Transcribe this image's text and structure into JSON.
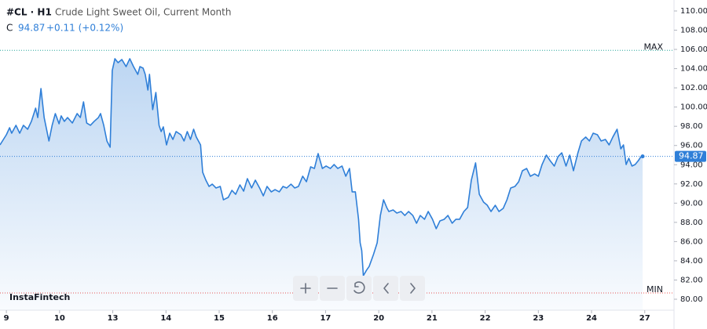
{
  "chart_data": {
    "type": "line",
    "symbol": "#CL · H1",
    "title": "Crude Light Sweet Oil, Current Month",
    "close_label": "C",
    "last_price": 94.87,
    "change": "+0.11 (+0.12%)",
    "watermark": "InstaFintech",
    "color": "#2f7fd8",
    "max": {
      "value": 105.9,
      "label": "MAX",
      "color": "#26a69a"
    },
    "min": {
      "value": 80.65,
      "label": "MIN",
      "color": "#ef5350"
    },
    "xlim": [
      -0.12,
      12.55
    ],
    "xticks": [
      {
        "value": 0,
        "label": "9"
      },
      {
        "value": 1,
        "label": "10"
      },
      {
        "value": 2,
        "label": "13"
      },
      {
        "value": 3,
        "label": "14"
      },
      {
        "value": 4,
        "label": "15"
      },
      {
        "value": 5,
        "label": "16"
      },
      {
        "value": 6,
        "label": "17"
      },
      {
        "value": 7,
        "label": "20"
      },
      {
        "value": 8,
        "label": "21"
      },
      {
        "value": 9,
        "label": "22"
      },
      {
        "value": 10,
        "label": "23"
      },
      {
        "value": 11,
        "label": "24"
      },
      {
        "value": 12,
        "label": "27"
      }
    ],
    "ylim": [
      80,
      110
    ],
    "yticks": [
      {
        "value": 80,
        "label": "80.00"
      },
      {
        "value": 82,
        "label": "82.00"
      },
      {
        "value": 84,
        "label": "84.00"
      },
      {
        "value": 86,
        "label": "86.00"
      },
      {
        "value": 88,
        "label": "88.00"
      },
      {
        "value": 90,
        "label": "90.00"
      },
      {
        "value": 92,
        "label": "92.00"
      },
      {
        "value": 94,
        "label": "94.00"
      },
      {
        "value": 96,
        "label": "96.00"
      },
      {
        "value": 98,
        "label": "98.00"
      },
      {
        "value": 100,
        "label": "100.00"
      },
      {
        "value": 102,
        "label": "102.00"
      },
      {
        "value": 104,
        "label": "104.00"
      },
      {
        "value": 106,
        "label": "106.00"
      },
      {
        "value": 108,
        "label": "108.00"
      },
      {
        "value": 110,
        "label": "110.00"
      }
    ],
    "grid": false,
    "x": [
      -0.12,
      0,
      0.06,
      0.1,
      0.18,
      0.25,
      0.32,
      0.4,
      0.47,
      0.55,
      0.59,
      0.65,
      0.71,
      0.8,
      0.86,
      0.92,
      0.99,
      1.03,
      1.09,
      1.15,
      1.24,
      1.33,
      1.39,
      1.45,
      1.51,
      1.58,
      1.65,
      1.73,
      1.77,
      1.83,
      1.89,
      1.95,
      1.99,
      2.04,
      2.1,
      2.17,
      2.25,
      2.32,
      2.39,
      2.47,
      2.51,
      2.57,
      2.61,
      2.66,
      2.69,
      2.75,
      2.81,
      2.87,
      2.91,
      2.95,
      3.01,
      3.07,
      3.13,
      3.19,
      3.28,
      3.34,
      3.4,
      3.46,
      3.52,
      3.57,
      3.65,
      3.69,
      3.75,
      3.81,
      3.87,
      3.94,
      4.02,
      4.08,
      4.17,
      4.24,
      4.31,
      4.39,
      4.46,
      4.53,
      4.61,
      4.68,
      4.76,
      4.83,
      4.9,
      4.98,
      5.05,
      5.13,
      5.2,
      5.27,
      5.35,
      5.42,
      5.49,
      5.57,
      5.64,
      5.72,
      5.79,
      5.86,
      5.94,
      6.01,
      6.09,
      6.16,
      6.23,
      6.31,
      6.38,
      6.45,
      6.5,
      6.56,
      6.62,
      6.65,
      6.68,
      6.71,
      6.77,
      6.82,
      6.9,
      6.97,
      7.03,
      7.09,
      7.15,
      7.19,
      7.27,
      7.34,
      7.42,
      7.49,
      7.56,
      7.64,
      7.71,
      7.78,
      7.86,
      7.93,
      8.01,
      8.08,
      8.15,
      8.23,
      8.3,
      8.38,
      8.45,
      8.52,
      8.6,
      8.67,
      8.74,
      8.82,
      8.89,
      8.97,
      9.04,
      9.11,
      9.19,
      9.26,
      9.34,
      9.41,
      9.48,
      9.56,
      9.63,
      9.7,
      9.78,
      9.85,
      9.93,
      10.0,
      10.07,
      10.15,
      10.22,
      10.3,
      10.37,
      10.44,
      10.52,
      10.59,
      10.66,
      10.74,
      10.81,
      10.89,
      10.96,
      11.03,
      11.11,
      11.18,
      11.26,
      11.33,
      11.4,
      11.48,
      11.55,
      11.6,
      11.65,
      11.7,
      11.76,
      11.82,
      11.88,
      11.93,
      11.96
    ],
    "values": [
      96.06,
      97.12,
      97.85,
      97.28,
      98.1,
      97.28,
      98.1,
      97.69,
      98.51,
      99.89,
      98.91,
      101.93,
      98.91,
      96.47,
      98.1,
      99.32,
      98.26,
      99.08,
      98.51,
      98.91,
      98.34,
      99.32,
      98.91,
      100.54,
      98.34,
      98.1,
      98.51,
      98.91,
      99.32,
      98.1,
      96.47,
      95.82,
      103.8,
      105.03,
      104.62,
      104.95,
      104.21,
      105.03,
      104.21,
      103.4,
      104.21,
      104.05,
      103.4,
      101.77,
      103.4,
      99.73,
      101.52,
      98.1,
      97.45,
      97.94,
      96.06,
      97.28,
      96.63,
      97.45,
      97.12,
      96.47,
      97.45,
      96.63,
      97.69,
      96.88,
      96.06,
      93.21,
      92.39,
      91.74,
      91.98,
      91.58,
      91.74,
      90.35,
      90.6,
      91.33,
      90.92,
      91.9,
      91.25,
      92.55,
      91.58,
      92.39,
      91.58,
      90.76,
      91.74,
      91.17,
      91.41,
      91.17,
      91.74,
      91.58,
      91.98,
      91.58,
      91.74,
      92.8,
      92.23,
      93.78,
      93.61,
      95.16,
      93.61,
      93.86,
      93.61,
      94.02,
      93.61,
      93.86,
      92.8,
      93.61,
      91.17,
      91.17,
      88.32,
      85.87,
      85.06,
      82.45,
      83.02,
      83.42,
      84.65,
      85.87,
      88.72,
      90.35,
      89.54,
      89.13,
      89.29,
      88.97,
      89.13,
      88.72,
      89.13,
      88.72,
      87.91,
      88.72,
      88.32,
      89.13,
      88.32,
      87.34,
      88.15,
      88.32,
      88.72,
      87.91,
      88.32,
      88.32,
      89.13,
      89.54,
      92.39,
      94.19,
      90.92,
      90.11,
      89.78,
      89.13,
      89.78,
      89.13,
      89.46,
      90.35,
      91.58,
      91.74,
      92.23,
      93.37,
      93.61,
      92.8,
      93.04,
      92.8,
      94.02,
      95.0,
      94.43,
      93.86,
      94.84,
      95.24,
      93.86,
      95.0,
      93.37,
      95.16,
      96.47,
      96.88,
      96.47,
      97.28,
      97.12,
      96.47,
      96.63,
      96.06,
      96.88,
      97.69,
      95.65,
      96.06,
      94.02,
      94.67,
      93.86,
      94.02,
      94.43,
      94.84,
      94.87
    ]
  }
}
